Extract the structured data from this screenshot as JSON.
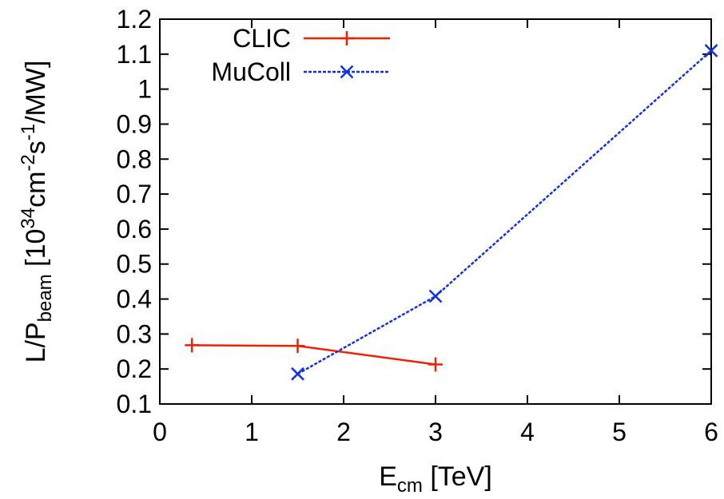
{
  "chart_data": {
    "type": "line",
    "xlabel": {
      "main": "E",
      "sub": "cm",
      "rest": " [TeV]"
    },
    "ylabel": {
      "p1": "L/P",
      "sub": "beam",
      "p2": " [10",
      "sup1": "34",
      "p3": "cm",
      "sup2": "-2",
      "p4": "s",
      "sup3": "-1",
      "p5": "/MW]"
    },
    "xlim": [
      0,
      6
    ],
    "ylim": [
      0.1,
      1.2
    ],
    "xticks": [
      0,
      1,
      2,
      3,
      4,
      5,
      6
    ],
    "yticks": [
      0.1,
      0.2,
      0.3,
      0.4,
      0.5,
      0.6,
      0.7,
      0.8,
      0.9,
      1.0,
      1.1,
      1.2
    ],
    "ytick_labels": [
      "0.1",
      "0.2",
      "0.3",
      "0.4",
      "0.5",
      "0.6",
      "0.7",
      "0.8",
      "0.9",
      "1",
      "1.1",
      "1.2"
    ],
    "grid": false,
    "legend_position": "top-left",
    "series": [
      {
        "name": "CLIC",
        "color": "#ee2200",
        "line": "solid",
        "marker": "plus",
        "x": [
          0.35,
          1.5,
          3.0
        ],
        "y": [
          0.268,
          0.266,
          0.213
        ]
      },
      {
        "name": "MuColl",
        "color": "#1133dd",
        "line": "dashed",
        "marker": "cross",
        "x": [
          1.5,
          3.0,
          6.0
        ],
        "y": [
          0.186,
          0.408,
          1.11
        ]
      }
    ]
  }
}
